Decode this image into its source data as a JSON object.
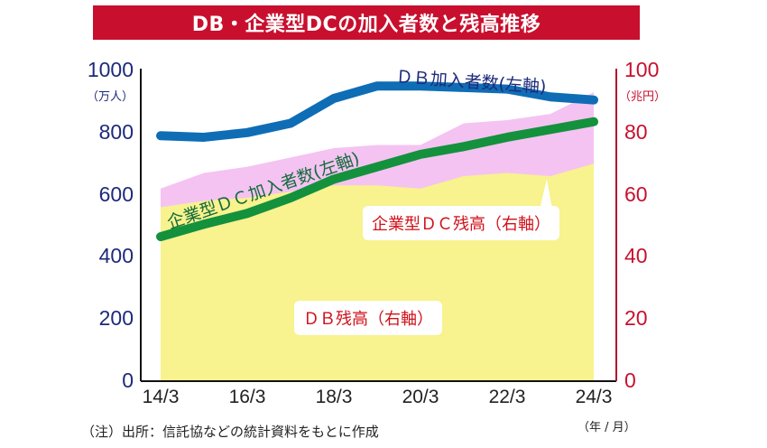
{
  "title": "DB・企業型DCの加入者数と残高推移",
  "axes": {
    "left": {
      "ticks": [
        "1000",
        "800",
        "600",
        "400",
        "200",
        "0"
      ],
      "unit": "（万人）",
      "color": "#1d2a7a"
    },
    "right": {
      "ticks": [
        "100",
        "80",
        "60",
        "40",
        "20",
        "0"
      ],
      "unit": "（兆円）",
      "color": "#c8102e"
    },
    "x": {
      "ticks": [
        "14/3",
        "16/3",
        "18/3",
        "20/3",
        "22/3",
        "24/3"
      ],
      "unit": "（年 / 月）"
    }
  },
  "labels": {
    "db_members": "ＤＢ加入者数(左軸)",
    "dc_members": "企業型ＤＣ加入者数(左軸)",
    "dc_balance": "企業型ＤＣ残高（右軸）",
    "db_balance": "ＤＢ残高（右軸）"
  },
  "note": "（注）出所：信託協などの統計資料をもとに作成",
  "colors": {
    "db_members": "#0f6db5",
    "dc_members": "#14913c",
    "db_balance": "#f8f28f",
    "dc_balance": "#f4c3f2",
    "title_bg": "#c8102e"
  },
  "chart_data": {
    "type": "area",
    "title": "DB・企業型DCの加入者数と残高推移",
    "x": [
      "14/3",
      "15/3",
      "16/3",
      "17/3",
      "18/3",
      "19/3",
      "20/3",
      "21/3",
      "22/3",
      "23/3",
      "24/3"
    ],
    "xlabel": "（年 / 月）",
    "ylabel": "（万人）",
    "ylabel_right": "（兆円）",
    "ylim": [
      0,
      1000
    ],
    "ylim_right": [
      0,
      100
    ],
    "series": [
      {
        "name": "DB加入者数（左軸）",
        "type": "line",
        "axis": "left",
        "values": [
          790,
          785,
          800,
          830,
          910,
          950,
          950,
          945,
          940,
          915,
          905
        ]
      },
      {
        "name": "企業型DC加入者数（左軸）",
        "type": "line",
        "axis": "left",
        "values": [
          465,
          505,
          540,
          590,
          650,
          690,
          730,
          755,
          785,
          810,
          835
        ]
      },
      {
        "name": "DB残高（右軸）",
        "type": "area",
        "axis": "right",
        "values": [
          56,
          58,
          59,
          61,
          63,
          63,
          62,
          66,
          67,
          66,
          70
        ]
      },
      {
        "name": "企業型DC残高（右軸）",
        "type": "stacked-area",
        "axis": "right",
        "values": [
          6,
          9,
          10,
          11,
          12,
          13,
          14,
          17,
          17,
          20,
          23
        ]
      }
    ],
    "grid": false,
    "legend": "inline labels"
  }
}
